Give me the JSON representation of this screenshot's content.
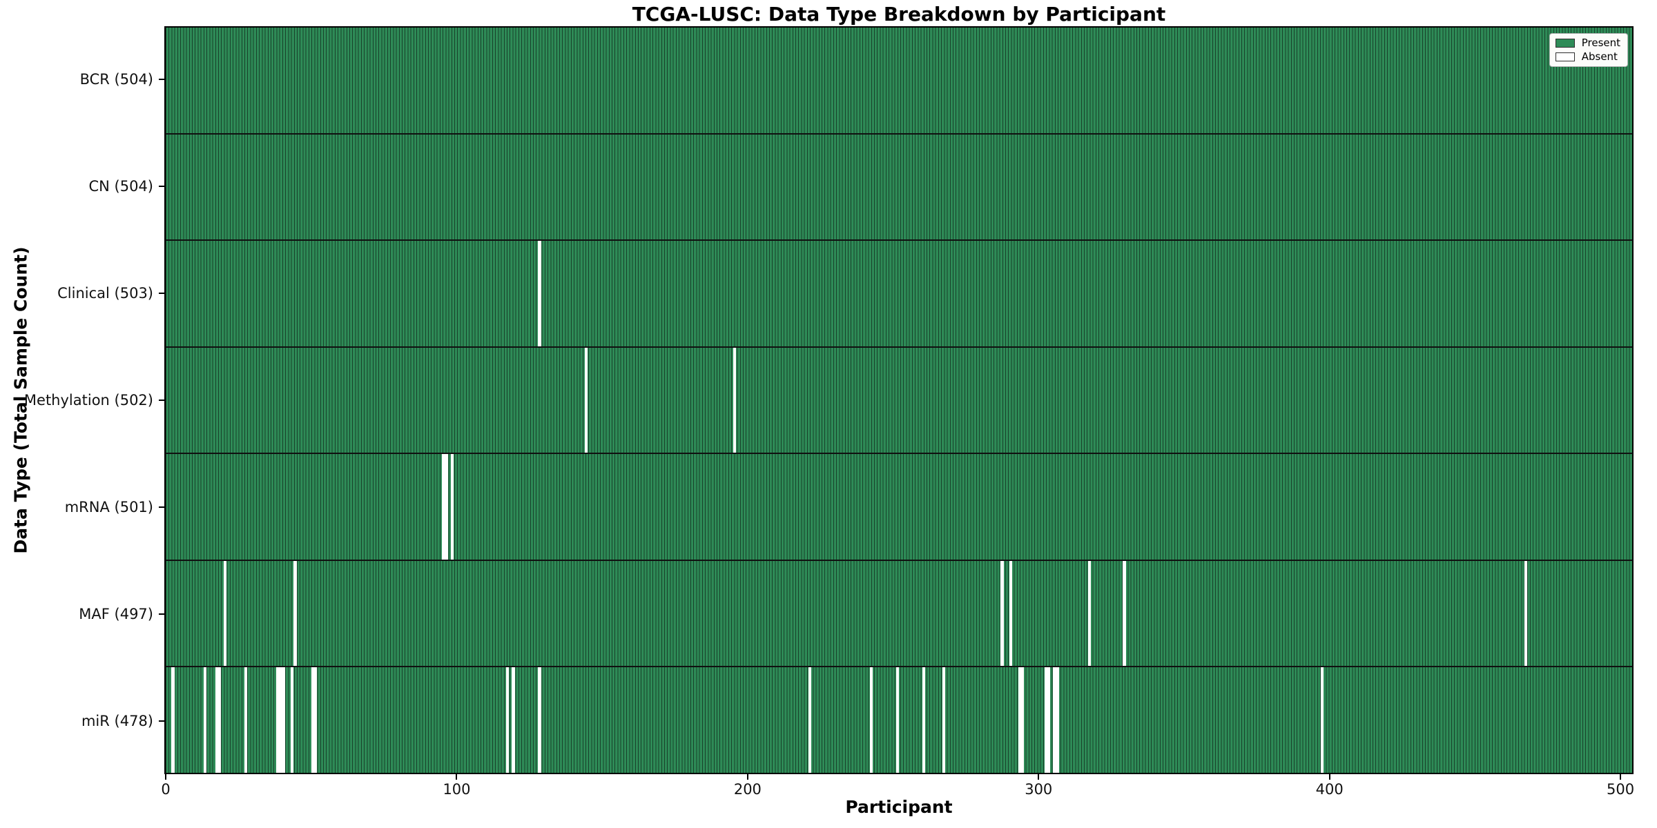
{
  "chart_data": {
    "type": "heatmap",
    "title": "TCGA-LUSC: Data Type Breakdown by Participant",
    "xlabel": "Participant",
    "ylabel": "Data Type (Total Sample Count)",
    "x_ticks": [
      0,
      100,
      200,
      300,
      400,
      500
    ],
    "x_axis_units": 505,
    "n_participants": 504,
    "legend_position": "upper right",
    "grid": false,
    "legend": [
      {
        "label": "Present",
        "value": "present"
      },
      {
        "label": "Absent",
        "value": "absent"
      }
    ],
    "rows": [
      {
        "label": "BCR (504)",
        "name": "BCR",
        "total": 504,
        "absent": []
      },
      {
        "label": "CN (504)",
        "name": "CN",
        "total": 504,
        "absent": []
      },
      {
        "label": "Clinical (503)",
        "name": "Clinical",
        "total": 503,
        "absent": [
          128
        ]
      },
      {
        "label": "Methylation (502)",
        "name": "Methylation",
        "total": 502,
        "absent": [
          144,
          195
        ]
      },
      {
        "label": "mRNA (501)",
        "name": "mRNA",
        "total": 501,
        "absent": [
          95,
          96,
          98
        ]
      },
      {
        "label": "MAF (497)",
        "name": "MAF",
        "total": 497,
        "absent": [
          20,
          44,
          287,
          290,
          317,
          329,
          467
        ]
      },
      {
        "label": "miR (478)",
        "name": "miR",
        "total": 478,
        "absent": [
          2,
          13,
          17,
          18,
          27,
          38,
          39,
          40,
          43,
          50,
          51,
          117,
          119,
          128,
          221,
          242,
          251,
          260,
          267,
          293,
          294,
          302,
          303,
          305,
          306,
          397
        ]
      }
    ]
  },
  "colors": {
    "present": "#2e8b57",
    "bar_edge": "#18402a",
    "absent": "#ffffff",
    "row_divider": "#101010",
    "plot_border": "#000000",
    "legend_bg": "#fcfcfa",
    "legend_border": "#b0b0b0"
  }
}
